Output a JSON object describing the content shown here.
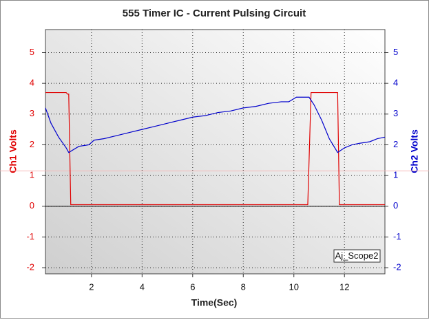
{
  "chart_data": {
    "type": "line",
    "title": "555 Timer IC  - Current Pulsing Circuit",
    "x_label": "Time(Sec)",
    "y_label": "Ch1 Volts",
    "y2_label": "Ch2 Volts",
    "annotation": "Aj_Scope2",
    "xlim": [
      0.18,
      13.6
    ],
    "xticks": [
      2,
      4,
      6,
      8,
      10,
      12
    ],
    "ylim": [
      -2.2,
      5.75
    ],
    "yticks": [
      -2,
      -1,
      0,
      1,
      2,
      3,
      4,
      5
    ],
    "y2lim": [
      -2.2,
      5.75
    ],
    "y2ticks": [
      -2,
      -1,
      0,
      1,
      2,
      3,
      4,
      5
    ],
    "grid": true,
    "reference_line": {
      "value": 1.15,
      "color": "#f4b8b8"
    },
    "series": [
      {
        "name": "Ch1",
        "color": "#e00000",
        "x": [
          0.18,
          1.0,
          1.05,
          1.1,
          1.18,
          10.55,
          10.68,
          11.0,
          11.4,
          11.73,
          11.8,
          13.6
        ],
        "values": [
          3.7,
          3.7,
          3.65,
          3.65,
          0.05,
          0.05,
          3.7,
          3.7,
          3.7,
          3.7,
          0.05,
          0.05
        ]
      },
      {
        "name": "Ch2",
        "color": "#0000cc",
        "axis": "y2",
        "x": [
          0.18,
          0.4,
          0.7,
          1.0,
          1.1,
          1.5,
          1.9,
          2.1,
          2.5,
          3,
          3.5,
          4,
          4.5,
          5,
          5.5,
          6,
          6.5,
          7,
          7.5,
          8,
          8.5,
          9,
          9.5,
          9.8,
          10.1,
          10.6,
          10.8,
          11.1,
          11.4,
          11.73,
          12.0,
          12.3,
          12.6,
          13.0,
          13.3,
          13.6
        ],
        "values": [
          3.2,
          2.7,
          2.25,
          1.9,
          1.75,
          1.95,
          2.0,
          2.15,
          2.2,
          2.3,
          2.4,
          2.5,
          2.6,
          2.7,
          2.8,
          2.9,
          2.95,
          3.05,
          3.1,
          3.2,
          3.25,
          3.35,
          3.4,
          3.4,
          3.55,
          3.55,
          3.3,
          2.8,
          2.2,
          1.75,
          1.9,
          2.0,
          2.05,
          2.1,
          2.2,
          2.25
        ]
      }
    ]
  }
}
